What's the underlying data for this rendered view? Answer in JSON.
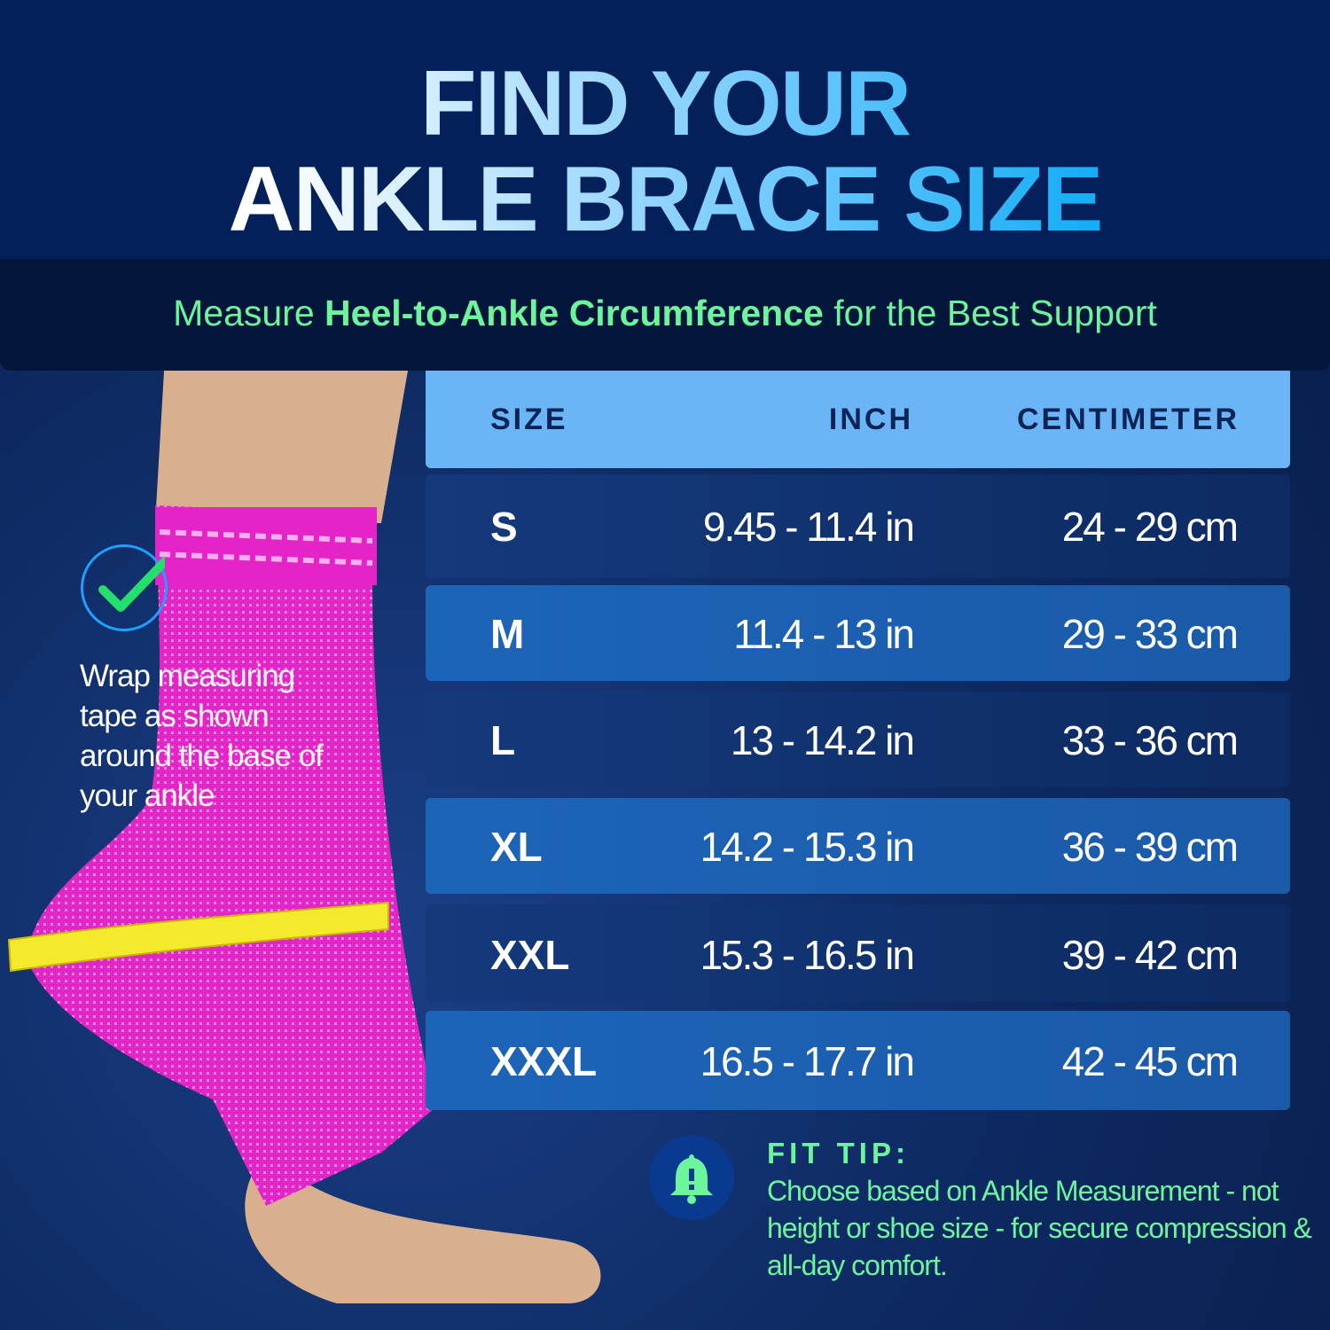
{
  "header": {
    "title_line1": "FIND YOUR",
    "title_line2": "ANKLE BRACE SIZE"
  },
  "subtitle": {
    "prefix": "Measure ",
    "emphasis": "Heel-to-Ankle Circumference",
    "suffix": " for the Best Support"
  },
  "instruction": {
    "icon": "checkmark-circle-icon",
    "text": "Wrap measuring tape as shown around the base of your ankle"
  },
  "size_table": {
    "columns": [
      "SIZE",
      "INCH",
      "CENTIMETER"
    ],
    "rows": [
      {
        "size": "S",
        "inch": "9.45 - 11.4 in",
        "cm": "24 - 29 cm"
      },
      {
        "size": "M",
        "inch": "11.4 - 13 in",
        "cm": "29 - 33 cm"
      },
      {
        "size": "L",
        "inch": "13 - 14.2 in",
        "cm": "33 - 36 cm"
      },
      {
        "size": "XL",
        "inch": "14.2 - 15.3 in",
        "cm": "36 - 39 cm"
      },
      {
        "size": "XXL",
        "inch": "15.3 - 16.5 in",
        "cm": "39 - 42 cm"
      },
      {
        "size": "XXXL",
        "inch": "16.5 - 17.7 in",
        "cm": "42 - 45 cm"
      }
    ]
  },
  "fit_tip": {
    "icon": "bell-alert-icon",
    "title": "FIT TIP:",
    "body": "Choose based on Ankle Measurement - not height or shoe size - for secure compression & all-day comfort."
  },
  "colors": {
    "header_bg": "#03205a",
    "accent_green": "#6df59b",
    "accent_blue": "#0aaaf5",
    "table_header": "#6bb5f7",
    "row_dark": "#143a7c",
    "row_light": "#1d64b8",
    "brace_pink": "#e524c8",
    "tape_yellow": "#f2ea2a"
  }
}
